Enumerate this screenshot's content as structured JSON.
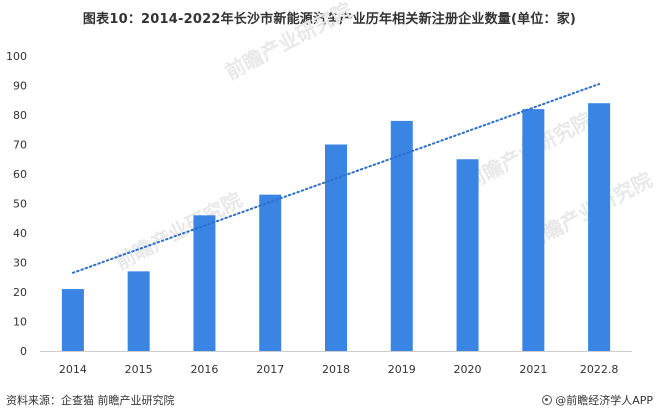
{
  "title": "图表10：2014-2022年长沙市新能源汽车产业历年相关新注册企业数量(单位：家)",
  "footer": {
    "source": "资料来源：企查猫 前瞻产业研究院",
    "brand": "@前瞻经济学人APP"
  },
  "watermark": {
    "text": "前瞻产业研究院"
  },
  "colors": {
    "bar": "#3a85e4",
    "trendline": "#2e6fc9",
    "text": "#333333",
    "axis": "#cccccc",
    "watermark": "#e9e9e9"
  },
  "chart_data": {
    "type": "bar",
    "categories": [
      "2014",
      "2015",
      "2016",
      "2017",
      "2018",
      "2019",
      "2020",
      "2021",
      "2022.8"
    ],
    "values": [
      21,
      27,
      46,
      53,
      70,
      78,
      65,
      82,
      84
    ],
    "ylim": [
      0,
      100
    ],
    "yticks": [
      0,
      10,
      20,
      30,
      40,
      50,
      60,
      70,
      80,
      90,
      100
    ],
    "trendline": {
      "style": "dotted",
      "start": 26.5,
      "end": 90.5
    },
    "grid": false,
    "legend": "none",
    "xlabel": "",
    "ylabel": ""
  }
}
